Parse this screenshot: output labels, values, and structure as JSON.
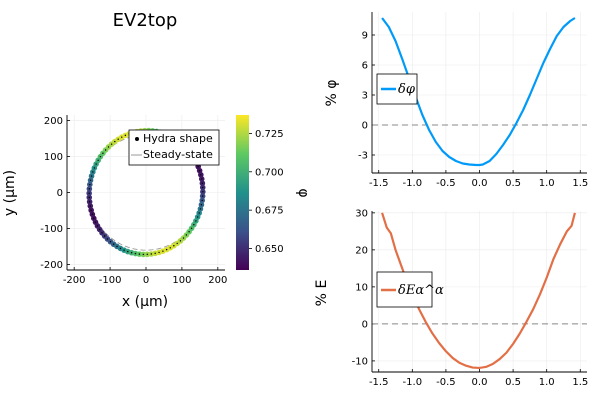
{
  "chart_data": [
    {
      "type": "scatter",
      "title": "EV2top",
      "xlabel": "x (μm)",
      "ylabel": "y (μm)",
      "xlim": [
        -220,
        220
      ],
      "ylim": [
        -215,
        215
      ],
      "xticks": [
        -200,
        -100,
        0,
        100,
        200
      ],
      "yticks": [
        -200,
        -100,
        0,
        100,
        200
      ],
      "grid": true,
      "legend_position": "top-right",
      "series": [
        {
          "name": "Hydra shape",
          "kind": "points",
          "shape": "ellipse",
          "center": [
            0,
            0
          ],
          "rx": 158,
          "ry": 172,
          "tilt_deg": -8,
          "color_by": "φ",
          "color_range": [
            0.636,
            0.737
          ]
        },
        {
          "name": "Steady-state",
          "kind": "line",
          "dash": true,
          "center": [
            0,
            0
          ],
          "rx": 158,
          "ry": 160,
          "color": "#999999"
        }
      ],
      "colorbar": {
        "label": "φ",
        "range": [
          0.636,
          0.737
        ],
        "ticks": [
          0.65,
          0.675,
          0.7,
          0.725
        ],
        "tick_labels": [
          "0.650",
          "0.675",
          "0.700",
          "0.725"
        ],
        "colormap": [
          "#440154",
          "#3b528b",
          "#21918c",
          "#5ec962",
          "#fde725"
        ]
      }
    },
    {
      "type": "line",
      "xlabel": "",
      "ylabel": "% φ",
      "xlim": [
        -1.6,
        1.6
      ],
      "ylim": [
        -4.8,
        11.3
      ],
      "xticks": [
        -1.5,
        -1.0,
        -0.5,
        0.0,
        0.5,
        1.0,
        1.5
      ],
      "xtick_labels": [
        "-1.5",
        "-1.0",
        "-0.5",
        "0.0",
        "0.5",
        "1.0",
        "1.5"
      ],
      "yticks": [
        -3,
        0,
        3,
        6,
        9
      ],
      "reference_line": 0,
      "legend_position": "middle-left",
      "series": [
        {
          "name": "δφ",
          "color": "#009af9",
          "x": [
            -1.45,
            -1.35,
            -1.25,
            -1.15,
            -1.05,
            -0.95,
            -0.85,
            -0.75,
            -0.65,
            -0.55,
            -0.45,
            -0.35,
            -0.25,
            -0.15,
            -0.05,
            0.0,
            0.05,
            0.15,
            0.25,
            0.35,
            0.45,
            0.55,
            0.65,
            0.75,
            0.85,
            0.95,
            1.05,
            1.15,
            1.25,
            1.35,
            1.42
          ],
          "y": [
            10.7,
            9.8,
            8.4,
            6.6,
            4.7,
            2.8,
            1.0,
            -0.5,
            -1.7,
            -2.6,
            -3.2,
            -3.6,
            -3.85,
            -3.95,
            -4.0,
            -4.0,
            -3.95,
            -3.6,
            -2.9,
            -2.0,
            -1.0,
            0.2,
            1.5,
            3.0,
            4.6,
            6.2,
            7.6,
            8.9,
            9.8,
            10.4,
            10.7
          ]
        }
      ]
    },
    {
      "type": "line",
      "xlabel": "",
      "ylabel": "% E",
      "xlim": [
        -1.6,
        1.6
      ],
      "ylim": [
        -13,
        30.5
      ],
      "xticks": [
        -1.5,
        -1.0,
        -0.5,
        0.0,
        0.5,
        1.0,
        1.5
      ],
      "xtick_labels": [
        "-1.5",
        "-1.0",
        "-0.5",
        "0.0",
        "0.5",
        "1.0",
        "1.5"
      ],
      "yticks": [
        -10,
        0,
        10,
        20,
        30
      ],
      "reference_line": 0,
      "legend_position": "middle-left",
      "series": [
        {
          "name": "δEα^α",
          "color": "#e26f46",
          "x": [
            -1.45,
            -1.38,
            -1.32,
            -1.25,
            -1.18,
            -1.1,
            -1.0,
            -0.9,
            -0.8,
            -0.7,
            -0.6,
            -0.5,
            -0.4,
            -0.3,
            -0.2,
            -0.1,
            0.0,
            0.1,
            0.2,
            0.3,
            0.4,
            0.5,
            0.6,
            0.7,
            0.8,
            0.9,
            1.0,
            1.1,
            1.2,
            1.3,
            1.37,
            1.42
          ],
          "y": [
            30.0,
            26.0,
            24.5,
            20.0,
            16.5,
            12.5,
            8.0,
            4.0,
            0.5,
            -2.6,
            -5.2,
            -7.4,
            -9.2,
            -10.5,
            -11.3,
            -11.8,
            -11.9,
            -11.6,
            -10.8,
            -9.5,
            -7.8,
            -5.4,
            -2.6,
            0.6,
            4.0,
            8.0,
            12.5,
            17.5,
            21.5,
            25.0,
            26.5,
            30.0
          ]
        }
      ]
    }
  ]
}
